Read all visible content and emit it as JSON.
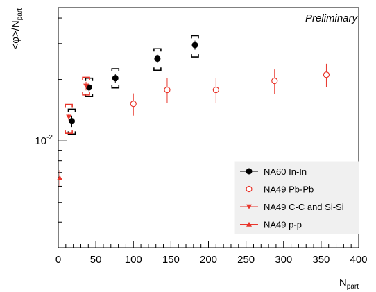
{
  "chart_data": {
    "type": "scatter",
    "title": "",
    "annotation": "Preliminary",
    "xlabel_main": "N",
    "xlabel_sub": "part",
    "ylabel_main": "<φ>/N",
    "ylabel_sub": "part",
    "xlim": [
      0,
      400
    ],
    "ylim": [
      0.003,
      0.045
    ],
    "yscale": "log",
    "x_ticks": [
      0,
      50,
      100,
      150,
      200,
      250,
      300,
      350,
      400
    ],
    "x_tick_labels": [
      "0",
      "50",
      "100",
      "150",
      "200",
      "250",
      "300",
      "350",
      "400"
    ],
    "y_ticks": [
      0.01
    ],
    "y_tick_labels": [
      {
        "base": "10",
        "exp": "-2"
      }
    ],
    "grid": false,
    "legend_position": "bottom-right",
    "series": [
      {
        "name": "NA60 In-In",
        "marker": "filled-circle",
        "color": "#000000",
        "points": [
          {
            "x": 18,
            "y": 0.0125,
            "err": 0.0008,
            "sys_lo": 0.0108,
            "sys_hi": 0.0143
          },
          {
            "x": 41,
            "y": 0.0183,
            "err": 0.001,
            "sys_lo": 0.0165,
            "sys_hi": 0.0203
          },
          {
            "x": 76,
            "y": 0.0203,
            "err": 0.001,
            "sys_lo": 0.0182,
            "sys_hi": 0.0226
          },
          {
            "x": 132,
            "y": 0.0253,
            "err": 0.0012,
            "sys_lo": 0.0222,
            "sys_hi": 0.0283
          },
          {
            "x": 182,
            "y": 0.0295,
            "err": 0.0015,
            "sys_lo": 0.0258,
            "sys_hi": 0.0328
          }
        ]
      },
      {
        "name": "NA49 Pb-Pb",
        "marker": "open-circle",
        "color": "#e8352b",
        "points": [
          {
            "x": 100,
            "y": 0.0152,
            "err": 0.0019
          },
          {
            "x": 145,
            "y": 0.0178,
            "err": 0.0025
          },
          {
            "x": 210,
            "y": 0.0178,
            "err": 0.0025
          },
          {
            "x": 288,
            "y": 0.0197,
            "err": 0.0027
          },
          {
            "x": 357,
            "y": 0.0211,
            "err": 0.0028
          }
        ]
      },
      {
        "name": "NA49 C-C and Si-Si",
        "marker": "triangle-down",
        "color": "#e8352b",
        "points": [
          {
            "x": 14,
            "y": 0.0131,
            "err": 0.0005,
            "sys_lo": 0.0109,
            "sys_hi": 0.0151
          },
          {
            "x": 37,
            "y": 0.0186,
            "err": 0.0009,
            "sys_lo": 0.0168,
            "sys_hi": 0.0205
          }
        ]
      },
      {
        "name": "NA49 p-p",
        "marker": "triangle-up",
        "color": "#e8352b",
        "points": [
          {
            "x": 2,
            "y": 0.0066,
            "err": 0.0006
          }
        ]
      }
    ]
  }
}
